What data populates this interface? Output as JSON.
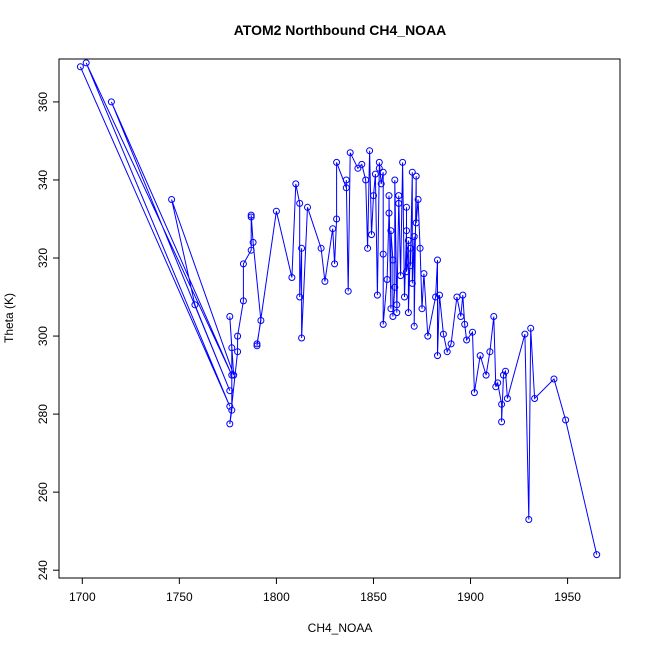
{
  "chart_data": {
    "type": "line",
    "title": "ATOM2 Northbound CH4_NOAA",
    "xlabel": "CH4_NOAA",
    "ylabel": "Theta (K)",
    "xlim": [
      1688,
      1977
    ],
    "ylim": [
      238,
      371
    ],
    "x_ticks": [
      1700,
      1750,
      1800,
      1850,
      1900,
      1950
    ],
    "y_ticks": [
      240,
      260,
      280,
      300,
      320,
      340,
      360
    ],
    "series_color": "#0000ff",
    "marker": "open-circle",
    "grid": false,
    "points": [
      [
        1699,
        369
      ],
      [
        1776,
        282
      ],
      [
        1702,
        370
      ],
      [
        1777,
        290
      ],
      [
        1715,
        360
      ],
      [
        1776,
        286
      ],
      [
        1758,
        308
      ],
      [
        1746,
        335
      ],
      [
        1778,
        290
      ],
      [
        1776,
        305
      ],
      [
        1777,
        297
      ],
      [
        1777,
        281
      ],
      [
        1776,
        277.5
      ],
      [
        1780,
        296
      ],
      [
        1780,
        300
      ],
      [
        1783,
        309
      ],
      [
        1783,
        318.5
      ],
      [
        1787,
        322
      ],
      [
        1787,
        330.5
      ],
      [
        1787,
        331
      ],
      [
        1788,
        324
      ],
      [
        1792,
        304
      ],
      [
        1790,
        298
      ],
      [
        1790,
        297.5
      ],
      [
        1800,
        332
      ],
      [
        1808,
        315
      ],
      [
        1810,
        339
      ],
      [
        1812,
        334
      ],
      [
        1812,
        310
      ],
      [
        1813,
        322.5
      ],
      [
        1813,
        299.5
      ],
      [
        1816,
        333
      ],
      [
        1823,
        322.5
      ],
      [
        1825,
        314
      ],
      [
        1829,
        327.5
      ],
      [
        1830,
        318.5
      ],
      [
        1831,
        330
      ],
      [
        1831,
        344.5
      ],
      [
        1836,
        338
      ],
      [
        1836,
        340
      ],
      [
        1837,
        311.5
      ],
      [
        1838,
        347
      ],
      [
        1842,
        343
      ],
      [
        1844,
        344
      ],
      [
        1846,
        340
      ],
      [
        1847,
        322.5
      ],
      [
        1848,
        347.5
      ],
      [
        1849,
        326
      ],
      [
        1850,
        336
      ],
      [
        1851,
        341.5
      ],
      [
        1852,
        310.5
      ],
      [
        1853,
        343
      ],
      [
        1853,
        344.5
      ],
      [
        1854,
        339
      ],
      [
        1855,
        342
      ],
      [
        1855,
        321
      ],
      [
        1855,
        303
      ],
      [
        1857,
        314.5
      ],
      [
        1858,
        331.5
      ],
      [
        1858,
        336
      ],
      [
        1859,
        307
      ],
      [
        1859,
        327
      ],
      [
        1860,
        319.5
      ],
      [
        1860,
        305
      ],
      [
        1861,
        312.5
      ],
      [
        1861,
        340
      ],
      [
        1862,
        308
      ],
      [
        1862,
        306
      ],
      [
        1863,
        334
      ],
      [
        1863,
        336
      ],
      [
        1864,
        315.5
      ],
      [
        1865,
        344.5
      ],
      [
        1866,
        310
      ],
      [
        1867,
        327
      ],
      [
        1867,
        333
      ],
      [
        1867,
        316.5
      ],
      [
        1868,
        324.5
      ],
      [
        1868,
        306
      ],
      [
        1869,
        322.5
      ],
      [
        1869,
        318
      ],
      [
        1870,
        342
      ],
      [
        1870,
        313.5
      ],
      [
        1871,
        325.5
      ],
      [
        1871,
        302.5
      ],
      [
        1872,
        341
      ],
      [
        1872,
        329
      ],
      [
        1873,
        335
      ],
      [
        1874,
        322.5
      ],
      [
        1875,
        307
      ],
      [
        1876,
        316
      ],
      [
        1878,
        300
      ],
      [
        1882,
        310
      ],
      [
        1883,
        319.5
      ],
      [
        1883,
        295
      ],
      [
        1884,
        310.5
      ],
      [
        1886,
        300.5
      ],
      [
        1888,
        296
      ],
      [
        1890,
        298
      ],
      [
        1893,
        310
      ],
      [
        1895,
        305
      ],
      [
        1896,
        310.5
      ],
      [
        1897,
        303
      ],
      [
        1898,
        299
      ],
      [
        1901,
        301
      ],
      [
        1902,
        285.5
      ],
      [
        1905,
        295
      ],
      [
        1908,
        290
      ],
      [
        1910,
        296
      ],
      [
        1912,
        305
      ],
      [
        1913,
        287
      ],
      [
        1914,
        288
      ],
      [
        1916,
        282.5
      ],
      [
        1916,
        278
      ],
      [
        1917,
        290
      ],
      [
        1918,
        291
      ],
      [
        1919,
        284
      ],
      [
        1928,
        300.5
      ],
      [
        1930,
        253
      ],
      [
        1931,
        302
      ],
      [
        1933,
        284
      ],
      [
        1943,
        289
      ],
      [
        1949,
        278.5
      ],
      [
        1965,
        244
      ]
    ]
  }
}
